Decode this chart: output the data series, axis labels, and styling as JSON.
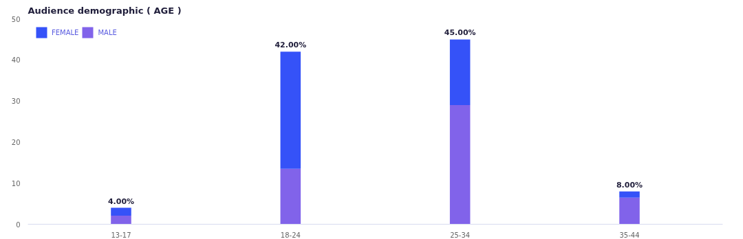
{
  "chart_data": {
    "type": "bar",
    "title": "Audience demographic ( AGE )",
    "categories": [
      "13-17",
      "18-24",
      "25-34",
      "35-44"
    ],
    "stacked": true,
    "series": [
      {
        "name": "MALE",
        "color": "#8163ea",
        "values": [
          2.1,
          13.5,
          29,
          6.5
        ]
      },
      {
        "name": "FEMALE",
        "color": "#3552f8",
        "values": [
          1.9,
          28.5,
          16,
          1.5
        ]
      }
    ],
    "totals": [
      "4.00%",
      "42.00%",
      "45.00%",
      "8.00%"
    ],
    "ylim": [
      0,
      50
    ],
    "yticks": [
      0,
      10,
      20,
      30,
      40,
      50
    ],
    "grid": false,
    "legend": "top left"
  }
}
